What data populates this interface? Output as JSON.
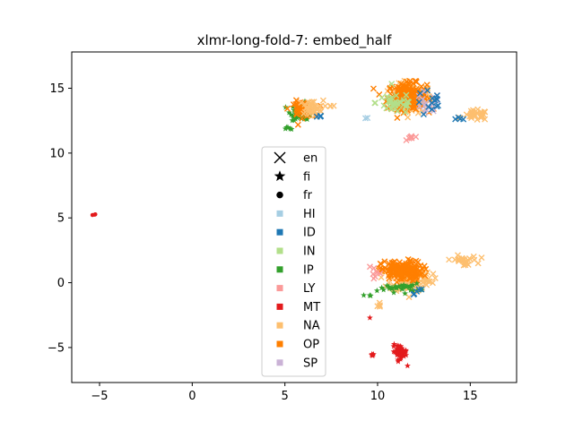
{
  "chart_data": {
    "type": "scatter",
    "title": "xlmr-long-fold-7: embed_half",
    "xlim": [
      -6.5,
      17.5
    ],
    "ylim": [
      -7.7,
      17.8
    ],
    "x_ticks": [
      -5,
      0,
      5,
      10,
      15
    ],
    "y_ticks": [
      -5,
      0,
      5,
      10,
      15
    ],
    "x_tick_labels": [
      "−5",
      "0",
      "5",
      "10",
      "15"
    ],
    "y_tick_labels": [
      "−5",
      "0",
      "5",
      "10",
      "15"
    ],
    "grid": false,
    "legend_placement": "center",
    "marker_legend": [
      {
        "label": "en",
        "marker": "x"
      },
      {
        "label": "fi",
        "marker": "star"
      },
      {
        "label": "fr",
        "marker": "circle"
      }
    ],
    "color_legend": [
      {
        "label": "HI",
        "color": "#a6cee3"
      },
      {
        "label": "ID",
        "color": "#1f78b4"
      },
      {
        "label": "IN",
        "color": "#b2df8a"
      },
      {
        "label": "IP",
        "color": "#33a02c"
      },
      {
        "label": "LY",
        "color": "#fb9a99"
      },
      {
        "label": "MT",
        "color": "#e31a1c"
      },
      {
        "label": "NA",
        "color": "#fdbf6f"
      },
      {
        "label": "OP",
        "color": "#ff7f00"
      },
      {
        "label": "SP",
        "color": "#cab2d6"
      }
    ],
    "clusters": [
      {
        "label": "NA",
        "color": "#fdbf6f",
        "marker": "x",
        "cx": 11.8,
        "cy": 14.2,
        "sx": 1.0,
        "sy": 1.0,
        "n": 140
      },
      {
        "label": "OP",
        "color": "#ff7f00",
        "marker": "x",
        "cx": 11.6,
        "cy": 14.4,
        "sx": 0.95,
        "sy": 0.9,
        "n": 200
      },
      {
        "label": "IN",
        "color": "#b2df8a",
        "marker": "x",
        "cx": 11.0,
        "cy": 13.9,
        "sx": 1.0,
        "sy": 0.8,
        "n": 40
      },
      {
        "label": "SP",
        "color": "#cab2d6",
        "marker": "x",
        "cx": 12.6,
        "cy": 13.6,
        "sx": 0.7,
        "sy": 1.0,
        "n": 16
      },
      {
        "label": "ID",
        "color": "#1f78b4",
        "marker": "x",
        "cx": 12.9,
        "cy": 13.8,
        "sx": 0.8,
        "sy": 1.0,
        "n": 14
      },
      {
        "label": "NA",
        "color": "#fdbf6f",
        "marker": "x",
        "cx": 15.3,
        "cy": 12.9,
        "sx": 0.6,
        "sy": 0.35,
        "n": 30
      },
      {
        "label": "ID",
        "color": "#1f78b4",
        "marker": "x",
        "cx": 14.5,
        "cy": 12.7,
        "sx": 0.25,
        "sy": 0.15,
        "n": 4
      },
      {
        "label": "LY",
        "color": "#fb9a99",
        "marker": "x",
        "cx": 11.8,
        "cy": 11.2,
        "sx": 0.2,
        "sy": 0.15,
        "n": 8
      },
      {
        "label": "HI",
        "color": "#a6cee3",
        "marker": "x",
        "cx": 9.4,
        "cy": 12.7,
        "sx": 0.1,
        "sy": 0.1,
        "n": 2
      },
      {
        "label": "IP",
        "color": "#33a02c",
        "marker": "star",
        "cx": 5.9,
        "cy": 13.2,
        "sx": 0.55,
        "sy": 0.6,
        "n": 55
      },
      {
        "label": "OP",
        "color": "#ff7f00",
        "marker": "x",
        "cx": 5.9,
        "cy": 13.4,
        "sx": 0.6,
        "sy": 0.55,
        "n": 45
      },
      {
        "label": "NA",
        "color": "#fdbf6f",
        "marker": "x",
        "cx": 6.4,
        "cy": 13.5,
        "sx": 0.6,
        "sy": 0.5,
        "n": 35
      },
      {
        "label": "ID",
        "color": "#1f78b4",
        "marker": "x",
        "cx": 6.9,
        "cy": 12.8,
        "sx": 0.15,
        "sy": 0.15,
        "n": 4
      },
      {
        "label": "IP",
        "color": "#33a02c",
        "marker": "star",
        "cx": 5.2,
        "cy": 11.9,
        "sx": 0.15,
        "sy": 0.12,
        "n": 6
      },
      {
        "label": "NA",
        "color": "#fdbf6f",
        "marker": "x",
        "cx": 7.5,
        "cy": 13.6,
        "sx": 0.15,
        "sy": 0.1,
        "n": 3
      },
      {
        "label": "NA",
        "color": "#fdbf6f",
        "marker": "x",
        "cx": 11.8,
        "cy": 0.3,
        "sx": 1.0,
        "sy": 0.9,
        "n": 150
      },
      {
        "label": "OP",
        "color": "#ff7f00",
        "marker": "x",
        "cx": 11.3,
        "cy": 0.9,
        "sx": 1.0,
        "sy": 0.7,
        "n": 160
      },
      {
        "label": "IP",
        "color": "#33a02c",
        "marker": "star",
        "cx": 11.2,
        "cy": -0.4,
        "sx": 1.0,
        "sy": 0.3,
        "n": 30
      },
      {
        "label": "LY",
        "color": "#fb9a99",
        "marker": "x",
        "cx": 9.9,
        "cy": 0.9,
        "sx": 0.3,
        "sy": 0.5,
        "n": 8
      },
      {
        "label": "ID",
        "color": "#1f78b4",
        "marker": "x",
        "cx": 12.2,
        "cy": -0.7,
        "sx": 0.3,
        "sy": 0.2,
        "n": 5
      },
      {
        "label": "NA",
        "color": "#fdbf6f",
        "marker": "x",
        "cx": 14.6,
        "cy": 1.7,
        "sx": 0.7,
        "sy": 0.35,
        "n": 25
      },
      {
        "label": "IP",
        "color": "#33a02c",
        "marker": "star",
        "cx": 9.5,
        "cy": -1.0,
        "sx": 0.15,
        "sy": 0.15,
        "n": 3
      },
      {
        "label": "NA",
        "color": "#fdbf6f",
        "marker": "x",
        "cx": 10.1,
        "cy": -1.8,
        "sx": 0.15,
        "sy": 0.3,
        "n": 4
      },
      {
        "label": "MT",
        "color": "#e31a1c",
        "marker": "star",
        "cx": 11.2,
        "cy": -5.3,
        "sx": 0.35,
        "sy": 0.45,
        "n": 45
      },
      {
        "label": "MT",
        "color": "#e31a1c",
        "marker": "star",
        "cx": 9.7,
        "cy": -5.6,
        "sx": 0.12,
        "sy": 0.1,
        "n": 5
      },
      {
        "label": "MT",
        "color": "#e31a1c",
        "marker": "star",
        "cx": 9.6,
        "cy": -2.7,
        "sx": 0.05,
        "sy": 0.05,
        "n": 1
      },
      {
        "label": "MT",
        "color": "#e31a1c",
        "marker": "star",
        "cx": 11.6,
        "cy": -6.4,
        "sx": 0.05,
        "sy": 0.05,
        "n": 1
      },
      {
        "label": "MT",
        "color": "#e31a1c",
        "marker": "circle",
        "cx": -5.2,
        "cy": 5.25,
        "sx": 0.15,
        "sy": 0.1,
        "n": 3
      }
    ]
  }
}
